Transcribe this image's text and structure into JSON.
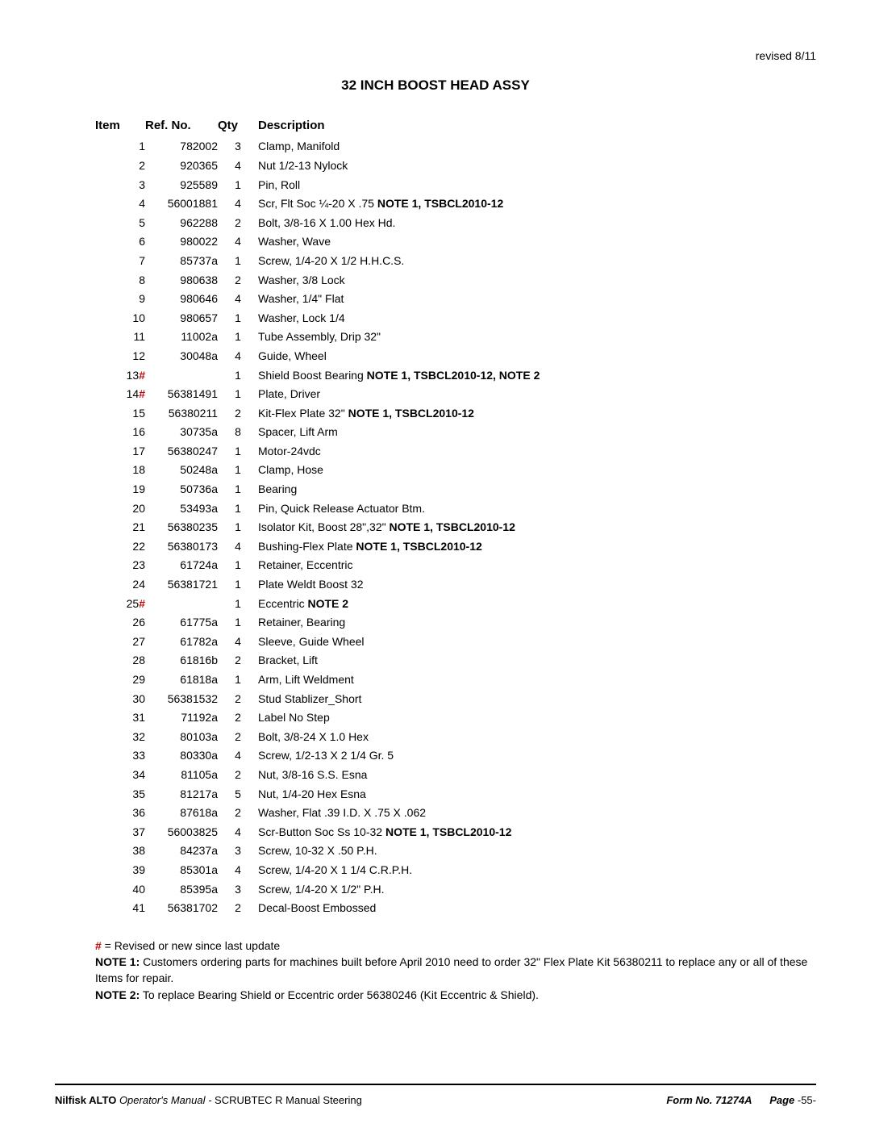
{
  "header": {
    "revised": "revised 8/11",
    "title": "32 INCH BOOST HEAD ASSY"
  },
  "columns": {
    "item": "Item",
    "ref": "Ref. No.",
    "qty": "Qty",
    "desc": "Description"
  },
  "rows": [
    {
      "item": "1",
      "hash": false,
      "ref": "782002",
      "qty": "3",
      "desc": "Clamp, Manifold"
    },
    {
      "item": "2",
      "hash": false,
      "ref": "920365",
      "qty": "4",
      "desc": "Nut 1/2-13 Nylock"
    },
    {
      "item": "3",
      "hash": false,
      "ref": "925589",
      "qty": "1",
      "desc": "Pin, Roll"
    },
    {
      "item": "4",
      "hash": false,
      "ref": "56001881",
      "qty": "4",
      "desc": "Scr, Flt Soc ¼-20 X .75 ",
      "descBold": "NOTE 1, TSBCL2010-12"
    },
    {
      "item": "5",
      "hash": false,
      "ref": "962288",
      "qty": "2",
      "desc": "Bolt, 3/8-16 X 1.00 Hex Hd."
    },
    {
      "item": "6",
      "hash": false,
      "ref": "980022",
      "qty": "4",
      "desc": "Washer, Wave"
    },
    {
      "item": "7",
      "hash": false,
      "ref": "85737a",
      "qty": "1",
      "desc": "Screw, 1/4-20 X 1/2 H.H.C.S."
    },
    {
      "item": "8",
      "hash": false,
      "ref": "980638",
      "qty": "2",
      "desc": "Washer, 3/8 Lock"
    },
    {
      "item": "9",
      "hash": false,
      "ref": "980646",
      "qty": "4",
      "desc": "Washer, 1/4\" Flat"
    },
    {
      "item": "10",
      "hash": false,
      "ref": "980657",
      "qty": "1",
      "desc": "Washer, Lock 1/4"
    },
    {
      "item": "11",
      "hash": false,
      "ref": "11002a",
      "qty": "1",
      "desc": "Tube Assembly, Drip 32\""
    },
    {
      "item": "12",
      "hash": false,
      "ref": "30048a",
      "qty": "4",
      "desc": "Guide, Wheel"
    },
    {
      "item": "13",
      "hash": true,
      "ref": "",
      "qty": "1",
      "desc": "Shield Boost Bearing ",
      "descBold": "NOTE 1, TSBCL2010-12, NOTE 2"
    },
    {
      "item": "14",
      "hash": true,
      "ref": "56381491",
      "qty": "1",
      "desc": "Plate, Driver"
    },
    {
      "item": "15",
      "hash": false,
      "ref": "56380211",
      "qty": "2",
      "desc": "Kit-Flex Plate 32\" ",
      "descBold": "NOTE 1, TSBCL2010-12"
    },
    {
      "item": "16",
      "hash": false,
      "ref": "30735a",
      "qty": "8",
      "desc": "Spacer, Lift Arm"
    },
    {
      "item": "17",
      "hash": false,
      "ref": "56380247",
      "qty": "1",
      "desc": "Motor-24vdc"
    },
    {
      "item": "18",
      "hash": false,
      "ref": "50248a",
      "qty": "1",
      "desc": "Clamp, Hose"
    },
    {
      "item": "19",
      "hash": false,
      "ref": "50736a",
      "qty": "1",
      "desc": "Bearing"
    },
    {
      "item": "20",
      "hash": false,
      "ref": "53493a",
      "qty": "1",
      "desc": "Pin, Quick Release Actuator Btm."
    },
    {
      "item": "21",
      "hash": false,
      "ref": "56380235",
      "qty": "1",
      "desc": "Isolator Kit, Boost 28\",32\" ",
      "descBold": "NOTE 1, TSBCL2010-12"
    },
    {
      "item": "22",
      "hash": false,
      "ref": "56380173",
      "qty": "4",
      "desc": "Bushing-Flex Plate ",
      "descBold": "NOTE 1, TSBCL2010-12"
    },
    {
      "item": "23",
      "hash": false,
      "ref": "61724a",
      "qty": "1",
      "desc": "Retainer, Eccentric"
    },
    {
      "item": "24",
      "hash": false,
      "ref": "56381721",
      "qty": "1",
      "desc": "Plate Weldt Boost 32"
    },
    {
      "item": "25",
      "hash": true,
      "ref": "",
      "qty": "1",
      "desc": "Eccentric ",
      "descBold": "NOTE 2"
    },
    {
      "item": "26",
      "hash": false,
      "ref": "61775a",
      "qty": "1",
      "desc": "Retainer, Bearing"
    },
    {
      "item": "27",
      "hash": false,
      "ref": "61782a",
      "qty": "4",
      "desc": "Sleeve, Guide Wheel"
    },
    {
      "item": "28",
      "hash": false,
      "ref": "61816b",
      "qty": "2",
      "desc": "Bracket, Lift"
    },
    {
      "item": "29",
      "hash": false,
      "ref": "61818a",
      "qty": "1",
      "desc": "Arm, Lift Weldment"
    },
    {
      "item": "30",
      "hash": false,
      "ref": "56381532",
      "qty": "2",
      "desc": "Stud Stablizer_Short"
    },
    {
      "item": "31",
      "hash": false,
      "ref": "71192a",
      "qty": "2",
      "desc": "Label No Step"
    },
    {
      "item": "32",
      "hash": false,
      "ref": "80103a",
      "qty": "2",
      "desc": "Bolt, 3/8-24 X 1.0 Hex"
    },
    {
      "item": "33",
      "hash": false,
      "ref": "80330a",
      "qty": "4",
      "desc": "Screw, 1/2-13 X 2 1/4 Gr. 5"
    },
    {
      "item": "34",
      "hash": false,
      "ref": "81105a",
      "qty": "2",
      "desc": "Nut, 3/8-16 S.S. Esna"
    },
    {
      "item": "35",
      "hash": false,
      "ref": "81217a",
      "qty": "5",
      "desc": "Nut, 1/4-20 Hex Esna"
    },
    {
      "item": "36",
      "hash": false,
      "ref": "87618a",
      "qty": "2",
      "desc": "Washer, Flat .39 I.D. X .75 X .062"
    },
    {
      "item": "37",
      "hash": false,
      "ref": "56003825",
      "qty": "4",
      "desc": "Scr-Button Soc Ss 10-32 ",
      "descBold": "NOTE 1, TSBCL2010-12"
    },
    {
      "item": "38",
      "hash": false,
      "ref": "84237a",
      "qty": "3",
      "desc": "Screw, 10-32 X .50 P.H."
    },
    {
      "item": "39",
      "hash": false,
      "ref": "85301a",
      "qty": "4",
      "desc": "Screw, 1/4-20 X 1 1/4 C.R.P.H."
    },
    {
      "item": "40",
      "hash": false,
      "ref": "85395a",
      "qty": "3",
      "desc": "Screw, 1/4-20 X 1/2\" P.H."
    },
    {
      "item": "41",
      "hash": false,
      "ref": "56381702",
      "qty": "2",
      "desc": "Decal-Boost Embossed"
    }
  ],
  "notes": {
    "legend_symbol": "#",
    "legend_text": " = Revised or new since last update",
    "note1_label": "NOTE 1:",
    "note1_text": " Customers ordering parts for machines built before April 2010 need to order 32\" Flex Plate Kit 56380211 to replace any or all of these Items for repair.",
    "note2_label": "NOTE 2:",
    "note2_text": " To replace Bearing Shield or Eccentric order 56380246 (Kit Eccentric & Shield)."
  },
  "footer": {
    "left_bold1": "Nilfisk ALTO",
    "left_italic": "  Operator's Manual - ",
    "left_plain": "SCRUBTEC R Manual Steering",
    "right_form": "Form No. 71274A",
    "right_page_label": "Page  ",
    "right_page_num": "-55-"
  }
}
